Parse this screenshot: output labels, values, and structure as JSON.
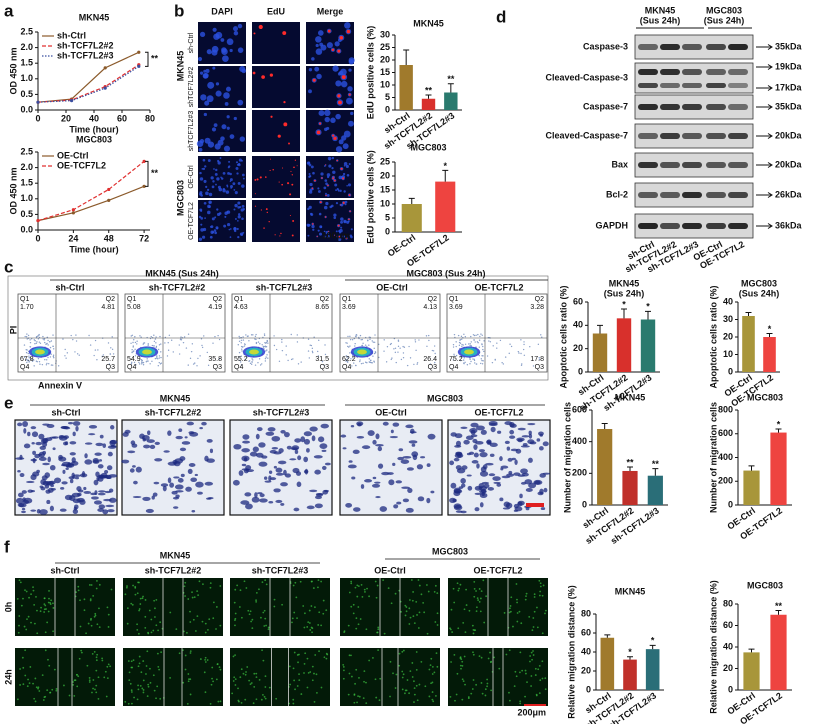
{
  "panel_labels": [
    "a",
    "b",
    "c",
    "d",
    "e",
    "f"
  ],
  "chart_data": [
    {
      "type": "line",
      "title": "MKN45",
      "ylabel": "OD 450 nm",
      "xlabel": "Time (hour)",
      "x": [
        0,
        24,
        48,
        72
      ],
      "xlim": [
        0,
        80
      ],
      "xticks": [
        0,
        20,
        40,
        60,
        80
      ],
      "ylim": [
        0,
        2.5
      ],
      "yticks": [
        {
          "value": 0,
          "label": "0.0"
        },
        0.5,
        {
          "value": 1,
          "label": "1.0"
        },
        1.5,
        {
          "value": 2,
          "label": "2.0"
        },
        2.5
      ],
      "series": [
        {
          "name": "sh-Ctrl",
          "color": "#8b5a2b",
          "style": "solid",
          "values": [
            0.25,
            0.35,
            1.35,
            1.85
          ]
        },
        {
          "name": "sh-TCF7L2#2",
          "color": "#e03030",
          "style": "dashed",
          "values": [
            0.25,
            0.32,
            0.75,
            1.45
          ]
        },
        {
          "name": "sh-TCF7L2#3",
          "color": "#3a4fa0",
          "style": "dotted",
          "values": [
            0.25,
            0.3,
            0.7,
            1.4
          ]
        }
      ],
      "annotation": "**"
    },
    {
      "type": "line",
      "title": "MGC803",
      "ylabel": "OD 450 nm",
      "xlabel": "Time (hour)",
      "x": [
        0,
        24,
        48,
        72
      ],
      "xlim": [
        0,
        76
      ],
      "xticks": [
        0,
        24,
        48,
        72
      ],
      "ylim": [
        0,
        2.5
      ],
      "yticks": [
        {
          "value": 0,
          "label": "0.0"
        },
        0.5,
        {
          "value": 1,
          "label": "1.0"
        },
        1.5,
        {
          "value": 2,
          "label": "2.0"
        },
        2.5
      ],
      "series": [
        {
          "name": "OE-Ctrl",
          "color": "#8b5a2b",
          "style": "solid",
          "values": [
            0.3,
            0.55,
            0.95,
            1.4
          ]
        },
        {
          "name": "OE-TCF7L2",
          "color": "#e03030",
          "style": "dashed",
          "values": [
            0.3,
            0.65,
            1.3,
            2.2
          ]
        }
      ],
      "annotation": "**"
    },
    {
      "type": "bar",
      "title": "MKN45",
      "ylabel": "EdU positive cells (%)",
      "categories": [
        "sh-Ctrl",
        "sh-TCF7L2#2",
        "sh-TCF7L2#3"
      ],
      "values": [
        18,
        4.5,
        7
      ],
      "errors": [
        6,
        1.5,
        3.5
      ],
      "colors": [
        "#a07a2c",
        "#d8302c",
        "#2a7a6e"
      ],
      "significance": [
        null,
        "**",
        "**"
      ],
      "ylim": [
        0,
        30
      ],
      "yticks": [
        0,
        5,
        10,
        15,
        20,
        25,
        30
      ]
    },
    {
      "type": "bar",
      "title": "MGC803",
      "ylabel": "EdU positive cells (%)",
      "categories": [
        "OE-Ctrl",
        "OE-TCF7L2"
      ],
      "values": [
        10,
        18
      ],
      "errors": [
        2,
        4
      ],
      "colors": [
        "#a8963a",
        "#ee4440"
      ],
      "significance": [
        null,
        "*"
      ],
      "ylim": [
        0,
        25
      ],
      "yticks": [
        0,
        5,
        10,
        15,
        20,
        25
      ]
    },
    {
      "type": "bar",
      "title": "MKN45",
      "subtitle": "(Sus 24h)",
      "ylabel": "Apoptotic cells ratio (%)",
      "categories": [
        "sh-Ctrl",
        "sh-TCF7L2#2",
        "sh-TCF7L2#3"
      ],
      "values": [
        33,
        46,
        45
      ],
      "errors": [
        7,
        8,
        7
      ],
      "colors": [
        "#a07a2c",
        "#d8302c",
        "#2a7a6e"
      ],
      "significance": [
        null,
        "*",
        "*"
      ],
      "ylim": [
        0,
        60
      ],
      "yticks": [
        0,
        20,
        40,
        60
      ]
    },
    {
      "type": "bar",
      "title": "MGC803",
      "subtitle": "(Sus 24h)",
      "ylabel": "Apoptotic cells ratio (%)",
      "categories": [
        "OE-Ctrl",
        "OE-TCF7L2"
      ],
      "values": [
        32,
        20
      ],
      "errors": [
        2,
        2
      ],
      "colors": [
        "#a8963a",
        "#ee4440"
      ],
      "significance": [
        null,
        "*"
      ],
      "ylim": [
        0,
        40
      ],
      "yticks": [
        0,
        10,
        20,
        30,
        40
      ]
    },
    {
      "type": "bar",
      "title": "MKN45",
      "ylabel": "Number of migration cells",
      "categories": [
        "sh-Ctrl",
        "sh-TCF7L2#2",
        "sh-TCF7L2#3"
      ],
      "values": [
        480,
        215,
        185
      ],
      "errors": [
        35,
        25,
        45
      ],
      "colors": [
        "#a07a2c",
        "#c0302a",
        "#2a6e78"
      ],
      "significance": [
        null,
        "**",
        "**"
      ],
      "ylim": [
        0,
        600
      ],
      "yticks": [
        0,
        200,
        400,
        600
      ]
    },
    {
      "type": "bar",
      "title": "MGC803",
      "ylabel": "Number of migration cells",
      "categories": [
        "OE-Ctrl",
        "OE-TCF7L2"
      ],
      "values": [
        290,
        610
      ],
      "errors": [
        40,
        30
      ],
      "colors": [
        "#a8963a",
        "#ee4440"
      ],
      "significance": [
        null,
        "*"
      ],
      "ylim": [
        0,
        800
      ],
      "yticks": [
        0,
        200,
        400,
        600,
        800
      ]
    },
    {
      "type": "bar",
      "title": "MKN45",
      "ylabel": "Relative migration distance (%)",
      "categories": [
        "sh-Ctrl",
        "sh-TCF7L2#2",
        "sh-TCF7L2#3"
      ],
      "values": [
        55,
        32,
        43
      ],
      "errors": [
        3,
        3,
        4
      ],
      "colors": [
        "#a07a2c",
        "#c0302a",
        "#2a6e78"
      ],
      "significance": [
        null,
        "*",
        "*"
      ],
      "ylim": [
        0,
        80
      ],
      "yticks": [
        0,
        20,
        40,
        60,
        80
      ]
    },
    {
      "type": "bar",
      "title": "MGC803",
      "ylabel": "Relative migration distance (%)",
      "categories": [
        "OE-Ctrl",
        "OE-TCF7L2"
      ],
      "values": [
        35,
        70
      ],
      "errors": [
        3,
        4
      ],
      "colors": [
        "#a8963a",
        "#ee4440"
      ],
      "significance": [
        null,
        "**"
      ],
      "ylim": [
        0,
        80
      ],
      "yticks": [
        0,
        20,
        40,
        60,
        80
      ]
    }
  ],
  "edu": {
    "columns": [
      "DAPI",
      "EdU",
      "Merge"
    ],
    "groups": [
      "MKN45",
      "MGC803"
    ],
    "rows": [
      "sh-Ctrl",
      "shTCF7L2#2",
      "shTCF7L2#3",
      "OE-Ctrl",
      "OE-TCF7L2"
    ],
    "scale": "100μm"
  },
  "western": {
    "groups": [
      [
        "MKN45",
        "(Sus 24h)"
      ],
      [
        "MGC803",
        "(Sus 24h)"
      ]
    ],
    "proteins": [
      {
        "name": "Caspase-3",
        "markers": [
          "35kDa"
        ]
      },
      {
        "name": "Cleaved-Caspase-3",
        "markers": [
          "19kDa",
          "17kDa"
        ]
      },
      {
        "name": "Caspase-7",
        "markers": [
          "35kDa"
        ]
      },
      {
        "name": "Cleaved-Caspase-7",
        "markers": [
          "20kDa"
        ]
      },
      {
        "name": "Bax",
        "markers": [
          "20kDa"
        ]
      },
      {
        "name": "Bcl-2",
        "markers": [
          "26kDa"
        ]
      },
      {
        "name": "GAPDH",
        "markers": [
          "36kDa"
        ]
      }
    ],
    "lanes": [
      "sh-Ctrl",
      "sh-TCF7L2#2",
      "sh-TCF7L2#3",
      "OE-Ctrl",
      "OE-TCF7L2"
    ]
  },
  "flow": {
    "groups": [
      "MKN45 (Sus 24h)",
      "MGC803 (Sus 24h)"
    ],
    "y_label": "PI",
    "x_label": "Annexin V",
    "quadrant_names": [
      "Q1",
      "Q2",
      "Q3",
      "Q4"
    ],
    "plots": [
      {
        "label": "sh-Ctrl",
        "q1": "1.70",
        "q2": "4.81",
        "q3": "25.7",
        "q4": "67.8"
      },
      {
        "label": "sh-TCF7L2#2",
        "q1": "5.08",
        "q2": "4.19",
        "q3": "35.8",
        "q4": "54.9"
      },
      {
        "label": "sh-TCF7L2#3",
        "q1": "4.63",
        "q2": "8.65",
        "q3": "31.5",
        "q4": "55.2"
      },
      {
        "label": "OE-Ctrl",
        "q1": "3.69",
        "q2": "4.13",
        "q3": "26.4",
        "q4": "62.2"
      },
      {
        "label": "OE-TCF7L2",
        "q1": "3.69",
        "q2": "3.28",
        "q3": "17.8",
        "q4": "75.2"
      }
    ]
  },
  "transwell": {
    "groups": [
      "MKN45",
      "MGC803"
    ],
    "labels": [
      "sh-Ctrl",
      "sh-TCF7L2#2",
      "sh-TCF7L2#3",
      "OE-Ctrl",
      "OE-TCF7L2"
    ]
  },
  "wound": {
    "groups": [
      "MKN45",
      "MGC803"
    ],
    "labels": [
      "sh-Ctrl",
      "sh-TCF7L2#2",
      "sh-TCF7L2#3",
      "OE-Ctrl",
      "OE-TCF7L2"
    ],
    "times": [
      "0h",
      "24h"
    ],
    "scale": "200μm"
  }
}
